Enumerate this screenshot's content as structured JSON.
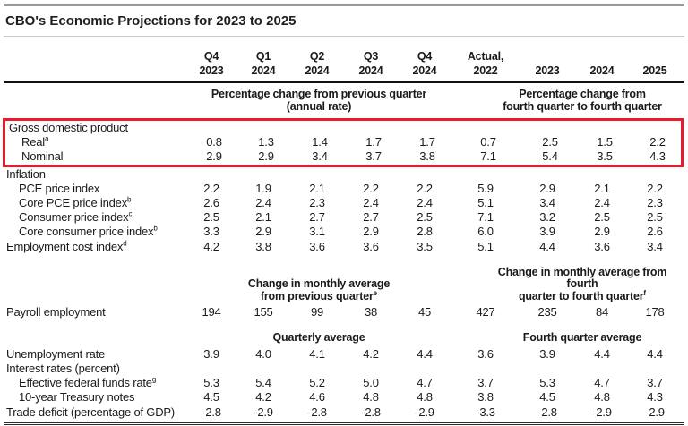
{
  "title": "CBO's Economic Projections for 2023 to 2025",
  "highlight_color": "#ea1c2c",
  "columns": [
    {
      "line1": "Q4",
      "line2": "2023"
    },
    {
      "line1": "Q1",
      "line2": "2024"
    },
    {
      "line1": "Q2",
      "line2": "2024"
    },
    {
      "line1": "Q3",
      "line2": "2024"
    },
    {
      "line1": "Q4",
      "line2": "2024"
    },
    {
      "line1": "Actual,",
      "line2": "2022"
    },
    {
      "line1": "",
      "line2": "2023"
    },
    {
      "line1": "",
      "line2": "2024"
    },
    {
      "line1": "",
      "line2": "2025"
    }
  ],
  "rows": [
    {
      "type": "group",
      "left": {
        "line1": "Percentage change from previous quarter",
        "line2": "(annual rate)",
        "sup": ""
      },
      "right": {
        "line1": "Percentage change from",
        "line2": "fourth quarter to fourth quarter",
        "sup": ""
      }
    },
    {
      "type": "section",
      "label": "Gross domestic product",
      "highlight": true
    },
    {
      "type": "data",
      "label": "Real",
      "sup": "a",
      "indent": true,
      "highlight": true,
      "values": [
        "0.8",
        "1.3",
        "1.4",
        "1.7",
        "1.7",
        "0.7",
        "2.5",
        "1.5",
        "2.2"
      ]
    },
    {
      "type": "data",
      "label": "Nominal",
      "sup": "",
      "indent": true,
      "highlight": true,
      "values": [
        "2.9",
        "2.9",
        "3.4",
        "3.7",
        "3.8",
        "7.1",
        "5.4",
        "3.5",
        "4.3"
      ]
    },
    {
      "type": "section",
      "label": "Inflation"
    },
    {
      "type": "data",
      "label": "PCE price index",
      "sup": "",
      "indent": true,
      "values": [
        "2.2",
        "1.9",
        "2.1",
        "2.2",
        "2.2",
        "5.9",
        "2.9",
        "2.1",
        "2.2"
      ]
    },
    {
      "type": "data",
      "label": "Core PCE price index",
      "sup": "b",
      "indent": true,
      "values": [
        "2.6",
        "2.4",
        "2.3",
        "2.4",
        "2.4",
        "5.1",
        "3.4",
        "2.4",
        "2.3"
      ]
    },
    {
      "type": "data",
      "label": "Consumer price index",
      "sup": "c",
      "indent": true,
      "values": [
        "2.5",
        "2.1",
        "2.7",
        "2.7",
        "2.5",
        "7.1",
        "3.2",
        "2.5",
        "2.5"
      ]
    },
    {
      "type": "data",
      "label": "Core consumer price index",
      "sup": "b",
      "indent": true,
      "values": [
        "3.3",
        "2.9",
        "3.1",
        "2.9",
        "2.8",
        "6.0",
        "3.9",
        "2.9",
        "2.6"
      ]
    },
    {
      "type": "data",
      "label": "Employment cost index",
      "sup": "d",
      "indent": false,
      "values": [
        "4.2",
        "3.8",
        "3.6",
        "3.6",
        "3.5",
        "5.1",
        "4.4",
        "3.6",
        "3.4"
      ]
    },
    {
      "type": "group",
      "gap": true,
      "left": {
        "line1": "Change in monthly average",
        "line2": "from previous quarter",
        "sup": "e"
      },
      "right": {
        "line1": "Change in monthly average from fourth",
        "line2": "quarter to fourth quarter",
        "sup": "f"
      }
    },
    {
      "type": "data",
      "label": "Payroll employment",
      "sup": "",
      "indent": false,
      "values": [
        "194",
        "155",
        "99",
        "38",
        "45",
        "427",
        "235",
        "84",
        "178"
      ]
    },
    {
      "type": "group",
      "gap": true,
      "left": {
        "line1": "Quarterly average",
        "line2": "",
        "sup": ""
      },
      "right": {
        "line1": "Fourth quarter average",
        "line2": "",
        "sup": ""
      }
    },
    {
      "type": "data",
      "label": "Unemployment rate",
      "sup": "",
      "indent": false,
      "values": [
        "3.9",
        "4.0",
        "4.1",
        "4.2",
        "4.4",
        "3.6",
        "3.9",
        "4.4",
        "4.4"
      ]
    },
    {
      "type": "section",
      "label": "Interest rates (percent)"
    },
    {
      "type": "data",
      "label": "Effective federal funds rate",
      "sup": "g",
      "indent": true,
      "values": [
        "5.3",
        "5.4",
        "5.2",
        "5.0",
        "4.7",
        "3.7",
        "5.3",
        "4.7",
        "3.7"
      ]
    },
    {
      "type": "data",
      "label": "10-year Treasury notes",
      "sup": "",
      "indent": true,
      "values": [
        "4.5",
        "4.2",
        "4.6",
        "4.8",
        "4.8",
        "3.8",
        "4.5",
        "4.8",
        "4.3"
      ]
    },
    {
      "type": "data",
      "label": "Trade deficit (percentage of GDP)",
      "sup": "",
      "indent": false,
      "values": [
        "-2.8",
        "-2.9",
        "-2.8",
        "-2.8",
        "-2.9",
        "-3.3",
        "-2.8",
        "-2.9",
        "-2.9"
      ]
    }
  ]
}
